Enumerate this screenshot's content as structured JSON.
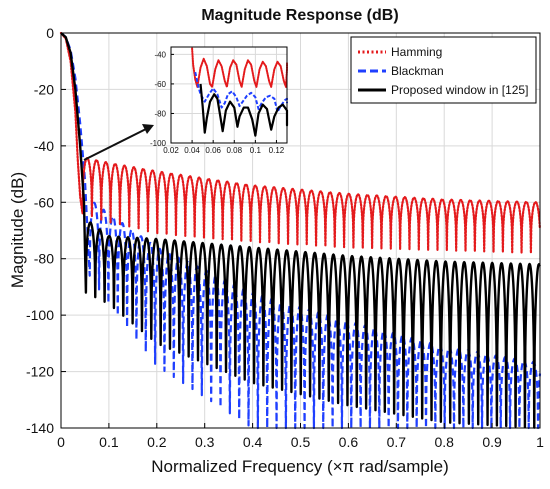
{
  "chart_data": [
    {
      "type": "line",
      "title": "Magnitude Response (dB)",
      "xlabel": "Normalized Frequency (×π rad/sample)",
      "ylabel": "Magnitude (dB)",
      "xlim": [
        0,
        1
      ],
      "ylim": [
        -140,
        0
      ],
      "xticks": [
        "0",
        "0.1",
        "0.2",
        "0.3",
        "0.4",
        "0.5",
        "0.6",
        "0.7",
        "0.8",
        "0.9",
        "1"
      ],
      "yticks": [
        "0",
        "-20",
        "-40",
        "-60",
        "-80",
        "-100",
        "-120",
        "-140"
      ],
      "grid": true,
      "legend_position": "top-right",
      "series": [
        {
          "name": "Hamming",
          "color": "#e41a1c",
          "style": "dotted",
          "main_lobe_x": [
            0,
            0.01,
            0.02,
            0.03,
            0.035,
            0.04
          ],
          "main_lobe_y": [
            0,
            -2,
            -10,
            -28,
            -45,
            -58
          ],
          "sidelobe_first_x": 0.045,
          "sidelobe_spacing": 0.0195,
          "envelope_x": [
            0.045,
            0.1,
            0.2,
            0.4,
            0.6,
            0.8,
            1.0
          ],
          "envelope_peak_y": [
            -44,
            -46,
            -49,
            -54,
            -57,
            -59,
            -60
          ],
          "null_floor_y": [
            -64,
            -67,
            -71,
            -74,
            -76,
            -77,
            -78
          ]
        },
        {
          "name": "Blackman",
          "color": "#1f3fff",
          "style": "dashed",
          "main_lobe_x": [
            0,
            0.01,
            0.02,
            0.03,
            0.04,
            0.05
          ],
          "main_lobe_y": [
            0,
            -1.5,
            -6,
            -16,
            -32,
            -52
          ],
          "sidelobe_first_x": 0.06,
          "sidelobe_spacing": 0.0195,
          "envelope_x": [
            0.06,
            0.1,
            0.2,
            0.4,
            0.6,
            0.8,
            1.0
          ],
          "envelope_peak_y": [
            -59,
            -64,
            -76,
            -92,
            -102,
            -111,
            -117
          ],
          "null_floor_y": [
            -86,
            -96,
            -118,
            -140,
            -140,
            -140,
            -140
          ]
        },
        {
          "name": "Proposed window in [125]",
          "color": "#000000",
          "style": "solid",
          "main_lobe_x": [
            0,
            0.01,
            0.02,
            0.03,
            0.04,
            0.048
          ],
          "main_lobe_y": [
            0,
            -1.5,
            -7,
            -20,
            -40,
            -60
          ],
          "sidelobe_first_x": 0.052,
          "sidelobe_spacing": 0.0195,
          "envelope_x": [
            0.052,
            0.1,
            0.2,
            0.4,
            0.6,
            0.8,
            1.0
          ],
          "envelope_peak_y": [
            -66,
            -72,
            -73,
            -76,
            -79,
            -81,
            -82
          ],
          "null_floor_y": [
            -92,
            -96,
            -110,
            -124,
            -132,
            -138,
            -140
          ]
        }
      ]
    },
    {
      "type": "line",
      "title": "",
      "xlim": [
        0.02,
        0.13
      ],
      "ylim": [
        -100,
        -35
      ],
      "xticks": [
        "0.02",
        "0.04",
        "0.06",
        "0.08",
        "0.1",
        "0.12"
      ],
      "yticks": [
        "-40",
        "-60",
        "-80",
        "-100"
      ],
      "grid": true,
      "series": [
        {
          "name": "Hamming",
          "points": [
            [
              0.04,
              -36
            ],
            [
              0.041,
              -47
            ],
            [
              0.043,
              -57
            ],
            [
              0.045,
              -62
            ],
            [
              0.048,
              -49
            ],
            [
              0.051,
              -43
            ],
            [
              0.054,
              -48
            ],
            [
              0.057,
              -60
            ],
            [
              0.059,
              -62
            ],
            [
              0.062,
              -50
            ],
            [
              0.065,
              -44
            ],
            [
              0.068,
              -48
            ],
            [
              0.071,
              -58
            ],
            [
              0.073,
              -62
            ],
            [
              0.076,
              -49
            ],
            [
              0.079,
              -44
            ],
            [
              0.082,
              -47
            ],
            [
              0.085,
              -58
            ],
            [
              0.087,
              -62
            ],
            [
              0.09,
              -50
            ],
            [
              0.093,
              -44
            ],
            [
              0.096,
              -47
            ],
            [
              0.099,
              -58
            ],
            [
              0.101,
              -62
            ],
            [
              0.104,
              -50
            ],
            [
              0.107,
              -45
            ],
            [
              0.11,
              -48
            ],
            [
              0.113,
              -58
            ],
            [
              0.115,
              -62
            ],
            [
              0.118,
              -50
            ],
            [
              0.121,
              -45
            ],
            [
              0.124,
              -48
            ],
            [
              0.127,
              -58
            ],
            [
              0.129,
              -62
            ],
            [
              0.132,
              -50
            ],
            [
              0.135,
              -46
            ]
          ]
        },
        {
          "name": "Blackman",
          "points": [
            [
              0.043,
              -52
            ],
            [
              0.046,
              -62
            ],
            [
              0.048,
              -67
            ],
            [
              0.052,
              -72
            ],
            [
              0.056,
              -67
            ],
            [
              0.06,
              -63
            ],
            [
              0.064,
              -67
            ],
            [
              0.068,
              -76
            ],
            [
              0.071,
              -73
            ],
            [
              0.074,
              -67
            ],
            [
              0.078,
              -65
            ],
            [
              0.082,
              -69
            ],
            [
              0.085,
              -75
            ],
            [
              0.088,
              -72
            ],
            [
              0.092,
              -68
            ],
            [
              0.096,
              -66
            ],
            [
              0.1,
              -69
            ],
            [
              0.103,
              -77
            ],
            [
              0.106,
              -73
            ],
            [
              0.11,
              -69
            ],
            [
              0.114,
              -68
            ],
            [
              0.118,
              -70
            ],
            [
              0.121,
              -79
            ],
            [
              0.124,
              -75
            ],
            [
              0.128,
              -71
            ],
            [
              0.132,
              -70
            ],
            [
              0.135,
              -73
            ]
          ]
        },
        {
          "name": "Proposed window in [125]",
          "points": [
            [
              0.048,
              -60
            ],
            [
              0.05,
              -75
            ],
            [
              0.052,
              -93
            ],
            [
              0.054,
              -83
            ],
            [
              0.057,
              -72
            ],
            [
              0.061,
              -67
            ],
            [
              0.064,
              -70
            ],
            [
              0.067,
              -83
            ],
            [
              0.069,
              -92
            ],
            [
              0.072,
              -78
            ],
            [
              0.076,
              -72
            ],
            [
              0.08,
              -76
            ],
            [
              0.083,
              -89
            ],
            [
              0.085,
              -82
            ],
            [
              0.089,
              -76
            ],
            [
              0.093,
              -76
            ],
            [
              0.097,
              -84
            ],
            [
              0.1,
              -95
            ],
            [
              0.103,
              -80
            ],
            [
              0.107,
              -74
            ],
            [
              0.111,
              -77
            ],
            [
              0.115,
              -91
            ],
            [
              0.118,
              -82
            ],
            [
              0.122,
              -76
            ],
            [
              0.126,
              -74
            ],
            [
              0.13,
              -78
            ],
            [
              0.133,
              -88
            ],
            [
              0.135,
              -80
            ]
          ]
        }
      ]
    }
  ]
}
